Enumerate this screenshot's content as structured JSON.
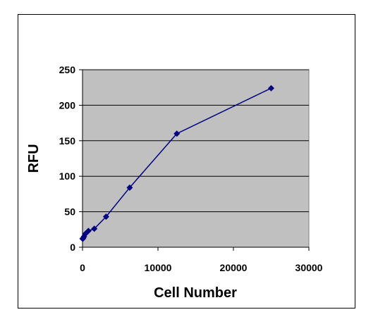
{
  "chart_data": {
    "type": "line",
    "x_label": "Cell Number",
    "y_label": "RFU",
    "series": [
      {
        "color": "#000080",
        "x": [
          0,
          49,
          98,
          195,
          390,
          780,
          1560,
          3125,
          6250,
          12500,
          25000
        ],
        "values": [
          12,
          12,
          13,
          15,
          19,
          23,
          26,
          43,
          84,
          160,
          224
        ]
      }
    ],
    "xlim": [
      0,
      30000
    ],
    "xticks": [
      0,
      10000,
      20000,
      30000
    ],
    "ylim": [
      0,
      250
    ],
    "yticks": [
      0,
      50,
      100,
      150,
      200,
      250
    ],
    "grid": true,
    "plot_background": "#c0c0c0"
  }
}
